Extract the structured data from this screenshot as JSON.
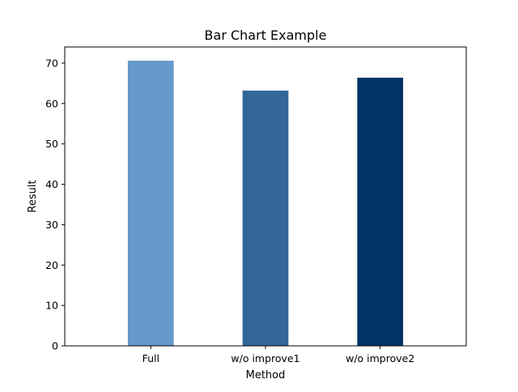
{
  "chart_data": {
    "type": "bar",
    "title": "Bar Chart Example",
    "xlabel": "Method",
    "ylabel": "Result",
    "categories": [
      "Full",
      "w/o improve1",
      "w/o improve2"
    ],
    "values": [
      70.6,
      63.2,
      66.4
    ],
    "colors": [
      "#6699cc",
      "#336699",
      "#003366"
    ],
    "ylim": [
      0,
      74
    ],
    "yticks": [
      0,
      10,
      20,
      30,
      40,
      50,
      60,
      70
    ],
    "grid": false,
    "legend": "none"
  }
}
